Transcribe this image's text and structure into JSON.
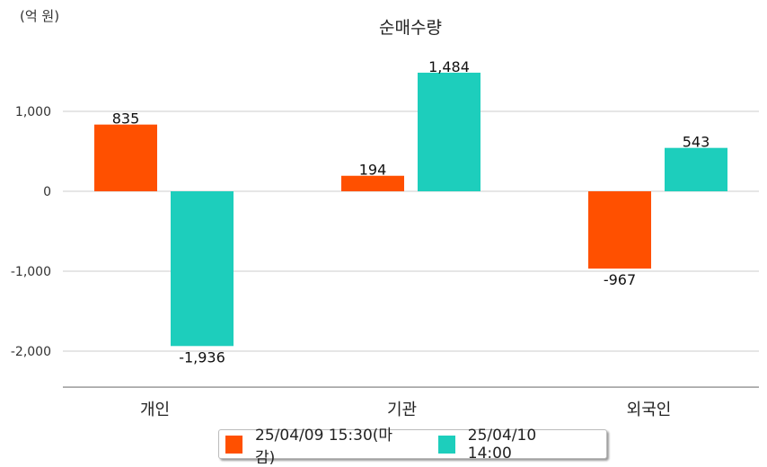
{
  "chart_data": {
    "type": "bar",
    "title": "순매수량",
    "unit_label": "(억 원)",
    "categories": [
      "개인",
      "기관",
      "외국인"
    ],
    "series": [
      {
        "name": "25/04/09 15:30(마감)",
        "color": "#ff5000",
        "values": [
          835,
          194,
          -967
        ],
        "labels": [
          "835",
          "194",
          "-967"
        ]
      },
      {
        "name": "25/04/10 14:00",
        "color": "#1dcebc",
        "values": [
          -1936,
          1484,
          543
        ],
        "labels": [
          "-1,936",
          "1,484",
          "543"
        ]
      }
    ],
    "yticks": [
      1000,
      0,
      -1000,
      -2000
    ],
    "ytick_labels": [
      "1,000",
      "0",
      "-1,000",
      "-2,000"
    ],
    "ylim": [
      -2450,
      2000
    ],
    "grid": true,
    "legend_position": "bottom"
  }
}
